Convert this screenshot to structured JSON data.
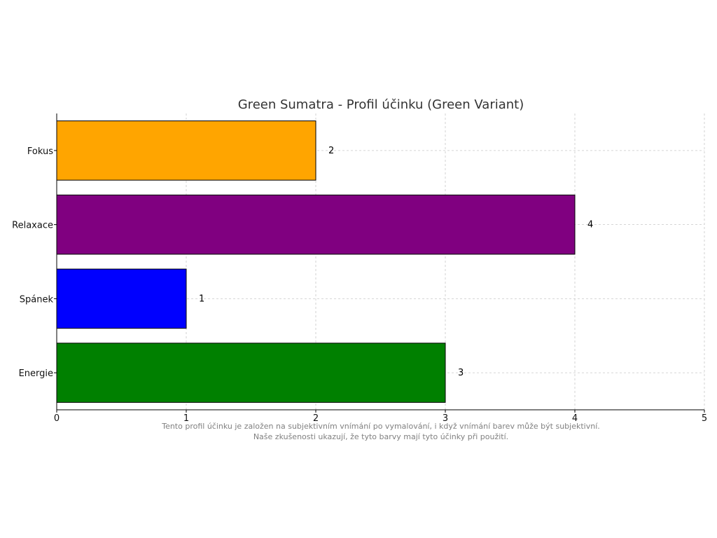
{
  "chart_data": {
    "type": "bar",
    "orientation": "horizontal",
    "title": "Green Sumatra - Profil účinku (Green Variant)",
    "xlabel": "",
    "ylabel": "",
    "categories": [
      "Energie",
      "Spánek",
      "Relaxace",
      "Fokus"
    ],
    "values": [
      3,
      1,
      4,
      2
    ],
    "bar_colors": [
      "#008000",
      "#0000ff",
      "#800080",
      "#ffa500"
    ],
    "data_labels": [
      "3",
      "1",
      "4",
      "2"
    ],
    "xlim": [
      0,
      5
    ],
    "x_ticks": [
      "0",
      "1",
      "2",
      "3",
      "4",
      "5"
    ],
    "grid": true,
    "grid_style": "dashed",
    "footnote": [
      "Tento profil účinku je založen na subjektivním vnímání po vymalování, i když vnímání barev může být subjektivní.",
      "Naše zkušenosti ukazují, že tyto barvy mají tyto účinky při použití."
    ]
  }
}
